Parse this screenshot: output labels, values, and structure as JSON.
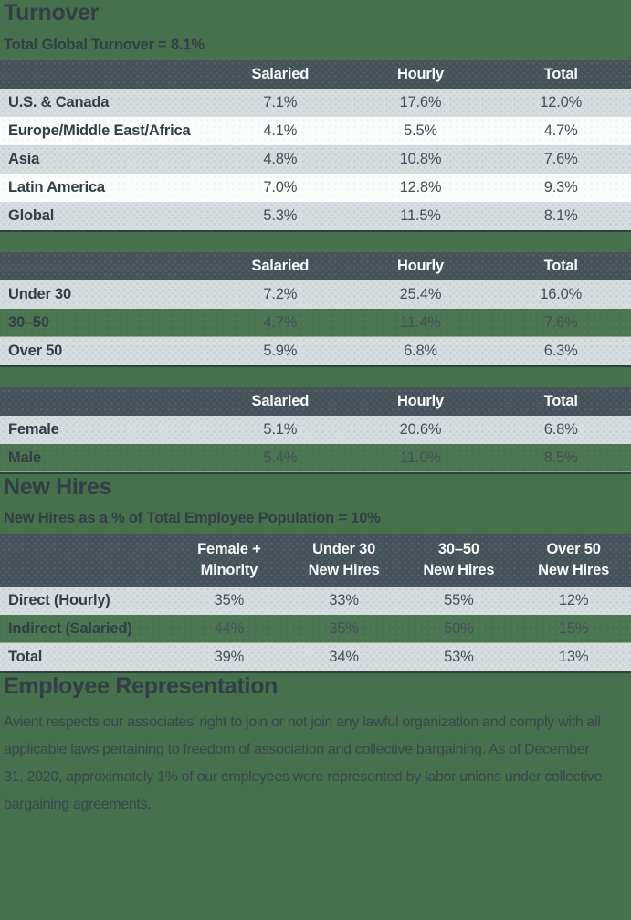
{
  "colors": {
    "background_green": "#47704D",
    "row_green": "#4C7551",
    "header_slate": "#46525A",
    "row_gray": "#D8DDE0",
    "row_white": "#FBFCFC",
    "text_dark": "#333E48",
    "text_value": "#45505A",
    "text_body": "#3A4650",
    "header_text": "#FAFBFB"
  },
  "turnover": {
    "title": "Turnover",
    "subtitle": "Total Global Turnover = 8.1%",
    "tables": [
      {
        "columns": [
          "Salaried",
          "Hourly",
          "Total"
        ],
        "rows": [
          {
            "label": "U.S. & Canada",
            "values": [
              "7.1%",
              "17.6%",
              "12.0%"
            ],
            "highlight": false
          },
          {
            "label": "Europe/Middle East/Africa",
            "values": [
              "4.1%",
              "5.5%",
              "4.7%"
            ],
            "highlight": false
          },
          {
            "label": "Asia",
            "values": [
              "4.8%",
              "10.8%",
              "7.6%"
            ],
            "highlight": false
          },
          {
            "label": "Latin America",
            "values": [
              "7.0%",
              "12.8%",
              "9.3%"
            ],
            "highlight": false
          },
          {
            "label": "Global",
            "values": [
              "5.3%",
              "11.5%",
              "8.1%"
            ],
            "highlight": false
          }
        ]
      },
      {
        "columns": [
          "Salaried",
          "Hourly",
          "Total"
        ],
        "rows": [
          {
            "label": "Under 30",
            "values": [
              "7.2%",
              "25.4%",
              "16.0%"
            ],
            "highlight": false
          },
          {
            "label": "30–50",
            "values": [
              "4.7%",
              "11.4%",
              "7.6%"
            ],
            "highlight": true
          },
          {
            "label": "Over 50",
            "values": [
              "5.9%",
              "6.8%",
              "6.3%"
            ],
            "highlight": false
          }
        ]
      },
      {
        "columns": [
          "Salaried",
          "Hourly",
          "Total"
        ],
        "rows": [
          {
            "label": "Female",
            "values": [
              "5.1%",
              "20.6%",
              "6.8%"
            ],
            "highlight": false
          },
          {
            "label": "Male",
            "values": [
              "5.4%",
              "11.0%",
              "8.5%"
            ],
            "highlight": true
          }
        ]
      }
    ]
  },
  "new_hires": {
    "title": "New Hires",
    "subtitle": "New Hires as a % of Total Employee Population = 10%",
    "table": {
      "columns": [
        [
          "Female +",
          "Minority"
        ],
        [
          "Under 30",
          "New Hires"
        ],
        [
          "30–50",
          "New Hires"
        ],
        [
          "Over 50",
          "New Hires"
        ]
      ],
      "rows": [
        {
          "label": "Direct (Hourly)",
          "values": [
            "35%",
            "33%",
            "55%",
            "12%"
          ],
          "highlight": false
        },
        {
          "label": "Indirect (Salaried)",
          "values": [
            "44%",
            "35%",
            "50%",
            "15%"
          ],
          "highlight": true
        },
        {
          "label": "Total",
          "values": [
            "39%",
            "34%",
            "53%",
            "13%"
          ],
          "highlight": false
        }
      ]
    }
  },
  "employee_representation": {
    "title": "Employee Representation",
    "body": "Avient respects our associates’ right to join or not join any lawful organization and comply with all applicable laws pertaining to freedom of association and collective bargaining. As of December 31, 2020, approximately 1% of our employees were represented by labor unions under collective bargaining agreements."
  }
}
